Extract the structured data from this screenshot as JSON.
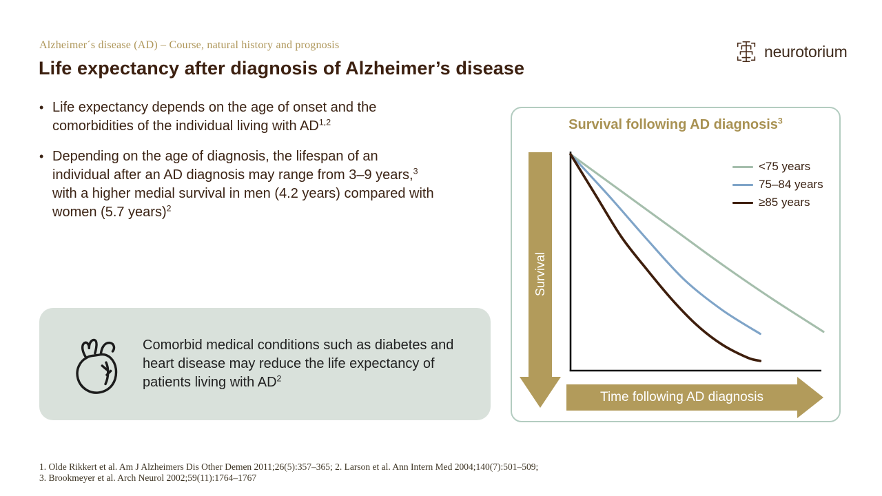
{
  "header": {
    "eyebrow": "Alzheimer´s  disease (AD) – Course, natural  history and prognosis",
    "title": "Life expectancy after diagnosis of Alzheimer’s disease",
    "logo_text": "neurotorium"
  },
  "bullets": [
    {
      "segments": [
        {
          "t": "Life expectancy depends on the age of onset and the comorbidities of the individual living with AD"
        },
        {
          "t": "1,2",
          "sup": true
        }
      ]
    },
    {
      "segments": [
        {
          "t": "Depending on the age of diagnosis, the lifespan of an individual after an AD diagnosis may range from 3–9 years,"
        },
        {
          "t": "3",
          "sup": true
        },
        {
          "t": " with a higher medial survival in men (4.2 years) compared with women (5.7 years)"
        },
        {
          "t": "2",
          "sup": true
        }
      ]
    }
  ],
  "callout": {
    "icon": "anatomical-heart-icon",
    "segments": [
      {
        "t": "Comorbid medical conditions such as diabetes and heart disease may reduce the life expectancy of patients living with AD"
      },
      {
        "t": "2",
        "sup": true
      }
    ]
  },
  "chart_data": {
    "type": "line",
    "title": "Survival following  AD diagnosis",
    "title_sup": "3",
    "xlabel": "Time following AD diagnosis",
    "ylabel": "Survival",
    "axis_ticks": "none",
    "grid": false,
    "legend_position": "top-right",
    "xlim": [
      0,
      10
    ],
    "ylim": [
      0,
      100
    ],
    "series": [
      {
        "name": "<75 years",
        "color": "#A5BEAC",
        "x": [
          0,
          2,
          4,
          6,
          8,
          10
        ],
        "y": [
          100,
          83,
          66,
          49,
          33,
          18
        ]
      },
      {
        "name": "75–84 years",
        "color": "#7FA4C8",
        "x": [
          0,
          1.5,
          3,
          4.5,
          6,
          7.5
        ],
        "y": [
          100,
          81,
          61,
          42,
          28,
          17
        ]
      },
      {
        "name": "≥85 years",
        "color": "#3E1E0C",
        "x": [
          0,
          1,
          2,
          3,
          4,
          5,
          6,
          7,
          7.5
        ],
        "y": [
          100,
          81,
          62,
          47,
          33,
          21,
          12,
          6,
          4.5
        ]
      }
    ]
  },
  "footer": {
    "lines": [
      "1. Olde Rikkert et al.  Am J Alzheimers  Dis Other Demen 2011;26(5):357–365;  2. Larson  et al.  Ann Intern Med 2004;140(7):501–509;",
      "3. Brookmeyer et al. Arch Neurol  2002;59(11):1764–1767"
    ]
  },
  "colors": {
    "accent_tan": "#B29B5B",
    "text_brown": "#3B2314",
    "title_brown": "#3C2010",
    "callout_bg": "#D9E1DB",
    "panel_border": "#B3CCC0"
  }
}
